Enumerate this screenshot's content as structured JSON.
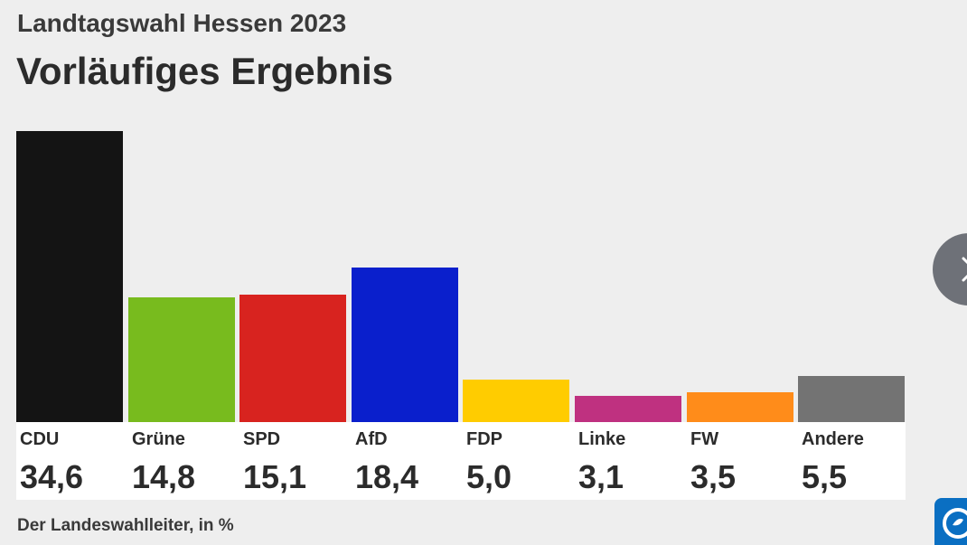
{
  "header": {
    "subtitle": "Landtagswahl Hessen 2023",
    "title": "Vorläufiges Ergebnis"
  },
  "footer": {
    "source": "Der Landeswahlleiter, in %"
  },
  "navigation": {
    "next_icon": "chevron-right-icon"
  },
  "brand": {
    "logo_icon": "ard-logo-icon",
    "color": "#0a6fc2"
  },
  "chart_data": {
    "type": "bar",
    "title": "Vorläufiges Ergebnis",
    "subtitle": "Landtagswahl Hessen 2023",
    "categories": [
      "CDU",
      "Grüne",
      "SPD",
      "AfD",
      "FDP",
      "Linke",
      "FW",
      "Andere"
    ],
    "values": [
      34.6,
      14.8,
      15.1,
      18.4,
      5.0,
      3.1,
      3.5,
      5.5
    ],
    "value_labels": [
      "34,6",
      "14,8",
      "15,1",
      "18,4",
      "5,0",
      "3,1",
      "3,5",
      "5,5"
    ],
    "colors": [
      "#141414",
      "#78bb1e",
      "#d8231f",
      "#0a1fcc",
      "#ffcc00",
      "#bf3180",
      "#ff8c1a",
      "#737373"
    ],
    "unit": "%",
    "xlabel": "",
    "ylabel": "",
    "ylim": [
      0,
      34.6
    ],
    "grid": false,
    "legend": "none"
  }
}
